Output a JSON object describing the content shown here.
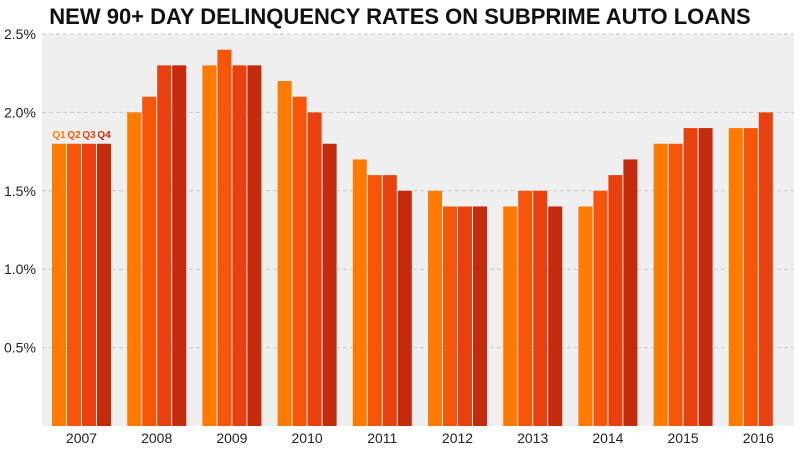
{
  "chart_data": {
    "type": "bar",
    "title": "NEW 90+ DAY DELINQUENCY RATES ON SUBPRIME AUTO LOANS",
    "xlabel": "",
    "ylabel": "",
    "ylim": [
      0,
      2.5
    ],
    "y_ticks": [
      "0.5%",
      "1.0%",
      "1.5%",
      "2.0%",
      "2.5%"
    ],
    "y_tick_values": [
      0.5,
      1.0,
      1.5,
      2.0,
      2.5
    ],
    "grid": true,
    "categories": [
      "2007",
      "2008",
      "2009",
      "2010",
      "2011",
      "2012",
      "2013",
      "2014",
      "2015",
      "2016"
    ],
    "quarter_labels": [
      "Q1",
      "Q2",
      "Q3",
      "Q4"
    ],
    "series": [
      {
        "name": "Q1",
        "color": "#ff7a00",
        "values": [
          1.8,
          2.0,
          2.3,
          2.2,
          1.7,
          1.5,
          1.4,
          1.4,
          1.8,
          1.9
        ]
      },
      {
        "name": "Q2",
        "color": "#f5560a",
        "values": [
          1.8,
          2.1,
          2.4,
          2.1,
          1.6,
          1.4,
          1.5,
          1.5,
          1.8,
          1.9
        ]
      },
      {
        "name": "Q3",
        "color": "#e8400f",
        "values": [
          1.8,
          2.3,
          2.3,
          2.0,
          1.6,
          1.4,
          1.5,
          1.6,
          1.9,
          2.0
        ]
      },
      {
        "name": "Q4",
        "color": "#c42a0c",
        "values": [
          1.8,
          2.3,
          2.3,
          1.8,
          1.5,
          1.4,
          1.4,
          1.7,
          1.9,
          null
        ]
      }
    ],
    "colors": {
      "panel": "#efefef",
      "grid": "#c9c9c9"
    }
  }
}
